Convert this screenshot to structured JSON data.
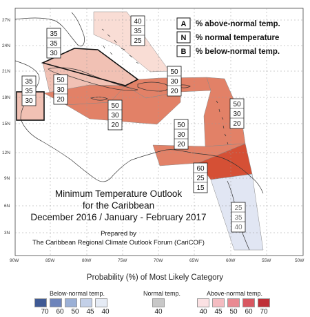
{
  "map": {
    "lat_labels": [
      "27N",
      "24N",
      "21N",
      "18N",
      "15N",
      "12N",
      "9N",
      "6N",
      "3N"
    ],
    "lon_labels": [
      "90W",
      "85W",
      "80W",
      "75W",
      "70W",
      "65W",
      "60W",
      "55W",
      "50W"
    ],
    "regions": [
      {
        "id": "bahamas",
        "above": "40",
        "normal": "35",
        "below": "25",
        "category": "above",
        "color": "#f9ddd5"
      },
      {
        "id": "cuba",
        "above": "35",
        "normal": "35",
        "below": "30",
        "category": "above",
        "color": "#f1c1b4"
      },
      {
        "id": "belize",
        "above": "35",
        "normal": "35",
        "below": "30",
        "category": "above",
        "color": "#f1c1b4"
      },
      {
        "id": "jamaica",
        "above": "50",
        "normal": "30",
        "below": "20",
        "category": "above",
        "color": "#e28167"
      },
      {
        "id": "hispaniola",
        "above": "50",
        "normal": "30",
        "below": "20",
        "category": "above",
        "color": "#e28167"
      },
      {
        "id": "caribbean_sea",
        "above": "50",
        "normal": "30",
        "below": "20",
        "category": "above",
        "color": "#e28167"
      },
      {
        "id": "lesser_antilles",
        "above": "50",
        "normal": "30",
        "below": "20",
        "category": "above",
        "color": "#e28167"
      },
      {
        "id": "south_caribbean",
        "above": "50",
        "normal": "30",
        "below": "20",
        "category": "above",
        "color": "#e28167"
      },
      {
        "id": "guianas",
        "above": "60",
        "normal": "25",
        "below": "15",
        "category": "above",
        "color": "#d55035"
      },
      {
        "id": "suriname_french_guiana",
        "above": "25",
        "normal": "35",
        "below": "40",
        "category": "below",
        "color": "#e1e6f3"
      }
    ]
  },
  "legend": {
    "items": [
      {
        "key": "A",
        "desc": "% above-normal temp."
      },
      {
        "key": "N",
        "desc": "% normal temperature"
      },
      {
        "key": "B",
        "desc": "% below-normal temp."
      }
    ]
  },
  "title": {
    "line1": "Minimum Temperature Outlook",
    "line2": "for the Caribbean",
    "line3": "December 2016 / January - February 2017",
    "prepared1": "Prepared by",
    "prepared2": "The Caribbean Regional Climate Outlook Forum (CariCOF)"
  },
  "scale": {
    "title": "Probability (%) of Most Likely Category",
    "below_label": "Below-normal temp.",
    "normal_label": "Normal temp.",
    "above_label": "Above-normal temp.",
    "below": [
      {
        "value": "70",
        "color": "#3f5a94"
      },
      {
        "value": "60",
        "color": "#6d84bb"
      },
      {
        "value": "50",
        "color": "#9bb0d6"
      },
      {
        "value": "45",
        "color": "#c3d0e8"
      },
      {
        "value": "40",
        "color": "#e5ebf5"
      }
    ],
    "normal": [
      {
        "value": "40",
        "color": "#c8c8c8"
      }
    ],
    "above": [
      {
        "value": "40",
        "color": "#fbe1e3"
      },
      {
        "value": "45",
        "color": "#f4bcc1"
      },
      {
        "value": "50",
        "color": "#e98a92"
      },
      {
        "value": "60",
        "color": "#d85862"
      },
      {
        "value": "70",
        "color": "#bf2f37"
      }
    ]
  }
}
